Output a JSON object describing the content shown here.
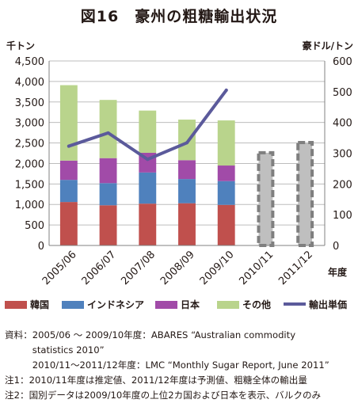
{
  "title": "図16　豪州の粗糖輸出状況",
  "chart_data": {
    "type": "bar",
    "categories": [
      "2005/06",
      "2006/07",
      "2007/08",
      "2008/09",
      "2009/10",
      "2010/11",
      "2011/12"
    ],
    "ylabel_left": "千トン",
    "ylabel_right": "豪ドル/トン",
    "xlabel": "年度",
    "ylim_left": [
      0,
      4500
    ],
    "ylim_right": [
      0,
      600
    ],
    "yticks_left": [
      "0",
      "500",
      "1,000",
      "1,500",
      "2,000",
      "2,500",
      "3,000",
      "3,500",
      "4,000",
      "4,500"
    ],
    "yticks_right": [
      "0",
      "100",
      "200",
      "300",
      "400",
      "500",
      "600"
    ],
    "series": [
      {
        "name": "韓国",
        "color": "#c0504d",
        "values": [
          1060,
          980,
          1020,
          1030,
          990,
          null,
          null
        ]
      },
      {
        "name": "インドネシア",
        "color": "#4f81bd",
        "values": [
          540,
          540,
          760,
          590,
          580,
          null,
          null
        ]
      },
      {
        "name": "日本",
        "color": "#a14ba8",
        "values": [
          470,
          610,
          480,
          460,
          380,
          null,
          null
        ]
      },
      {
        "name": "その他",
        "color": "#b9d48c",
        "values": [
          1840,
          1420,
          1030,
          990,
          1100,
          null,
          null
        ]
      }
    ],
    "totals_forecast": [
      null,
      null,
      null,
      null,
      null,
      2300,
      2550
    ],
    "forecast_color": "#bfbfbf",
    "line": {
      "name": "輸出単価",
      "color": "#5b5a9b",
      "values": [
        323,
        366,
        280,
        334,
        505,
        null,
        null
      ]
    },
    "grid": true,
    "legend_position": "bottom"
  },
  "notes": [
    "資料：2005/06 ～ 2009/10年度：ABARES “Australian commodity",
    "　　　statistics 2010”",
    "　　　2010/11～2011/12年度：LMC “Monthly Sugar Report, June 2011”",
    "注1：2010/11年度は推定値、2011/12年度は予測値、粗糖全体の輸出量",
    "注2：国別データは2009/10年度の上位2カ国および日本を表示、バルクのみ"
  ]
}
